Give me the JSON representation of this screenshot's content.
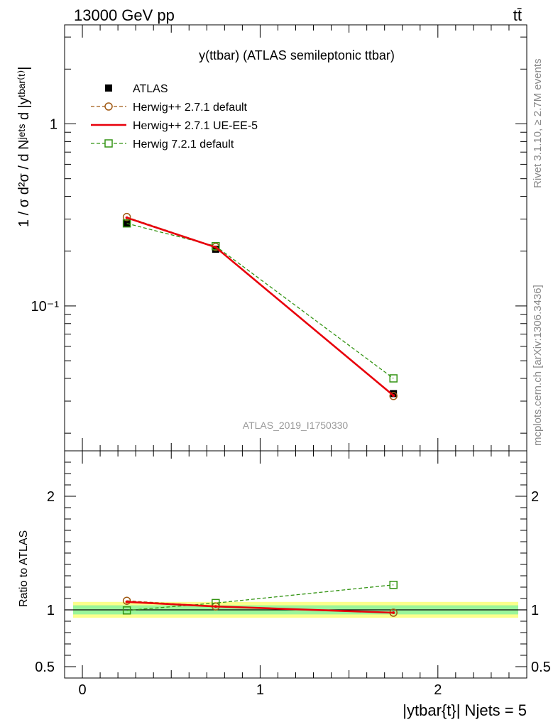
{
  "header": {
    "energy_label": "13000 GeV pp",
    "process_label": "tt̄"
  },
  "side_labels": {
    "rivet": "Rivet 3.1.10, ≥ 2.7M events",
    "mcplots": "mcplots.cern.ch [arXiv:1306.3436]"
  },
  "chart_data": [
    {
      "type": "line",
      "title": "y(ttbar) (ATLAS semileptonic ttbar)",
      "watermark": "ATLAS_2019_I1750330",
      "ylabel": "1 / σ d²σ / d Nʲᵉᵗˢ d |yᵗᵇᵃʳ⁽ᵗ⁾|",
      "yscale": "log",
      "xlim": [
        -0.1,
        2.5
      ],
      "ylim": [
        0.016,
        3.5
      ],
      "ytick_labels": [
        "1",
        "10⁻¹"
      ],
      "legend_position": "top-left",
      "x": [
        0.25,
        0.75,
        1.75
      ],
      "series": [
        {
          "name": "ATLAS",
          "values": [
            0.285,
            0.205,
            0.033
          ],
          "color": "#000000",
          "style": "data"
        },
        {
          "name": "Herwig++ 2.7.1 default",
          "values": [
            0.308,
            0.211,
            0.032
          ],
          "color": "#a05a14",
          "style": "dashed-circle"
        },
        {
          "name": "Herwig++ 2.7.1 UE-EE-5",
          "values": [
            0.305,
            0.21,
            0.0322
          ],
          "color": "#e8000b",
          "style": "solid"
        },
        {
          "name": "Herwig 7.2.1 default",
          "values": [
            0.284,
            0.213,
            0.04
          ],
          "color": "#339413",
          "style": "dashed-square"
        }
      ]
    },
    {
      "type": "line",
      "ylabel": "Ratio to ATLAS",
      "xlabel": "|ytbar{t}| Njets = 5",
      "xlim": [
        -0.1,
        2.5
      ],
      "ylim": [
        0.4,
        2.4
      ],
      "ytick_labels": [
        "2",
        "1",
        "0.5"
      ],
      "xtick_labels": [
        "0",
        "1",
        "2"
      ],
      "x": [
        0.25,
        0.75,
        1.75
      ],
      "band_outer": [
        0.93,
        1.07
      ],
      "band_inner": [
        0.96,
        1.04
      ],
      "series": [
        {
          "name": "Herwig++ 2.7.1 default",
          "values": [
            1.08,
            1.03,
            0.975
          ],
          "color": "#a05a14",
          "style": "dashed-circle"
        },
        {
          "name": "Herwig++ 2.7.1 UE-EE-5",
          "values": [
            1.07,
            1.03,
            0.975
          ],
          "color": "#e8000b",
          "style": "solid"
        },
        {
          "name": "Herwig 7.2.1 default",
          "values": [
            0.995,
            1.06,
            1.22
          ],
          "color": "#339413",
          "style": "dashed-square"
        }
      ]
    }
  ]
}
